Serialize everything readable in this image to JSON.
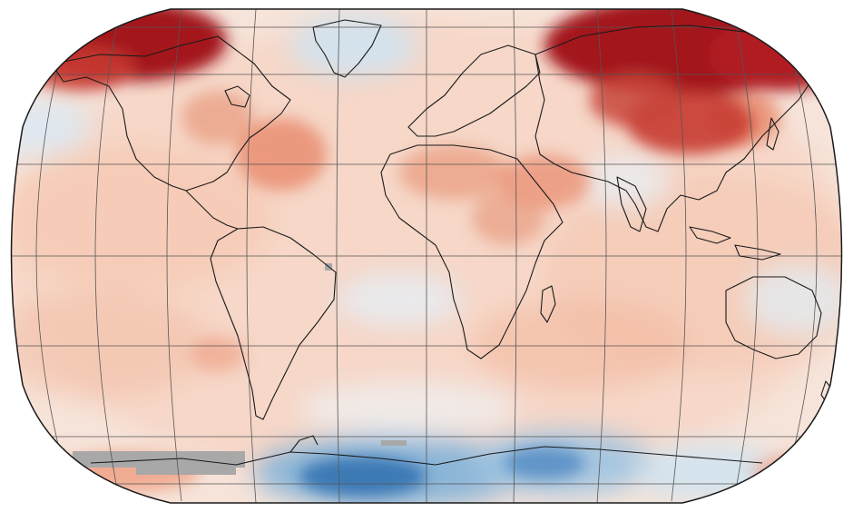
{
  "map": {
    "projection": "robinson",
    "palette": {
      "ocean_neutral": "#f6efe9",
      "warm_light": "#f5c7b0",
      "warm_mid": "#e8896c",
      "warm_strong": "#c63a32",
      "warm_extreme": "#a3141d",
      "cool_light": "#cfe3f1",
      "cool_mid": "#7fb1d9",
      "cool_strong": "#2f6eae",
      "missing_data": "#a8a8a8",
      "coastline": "#1a1a1a",
      "graticule": "#555555"
    },
    "anomaly_regions": [
      {
        "region": "northern-canada-greenland-west",
        "level": "extreme-warm"
      },
      {
        "region": "northern-siberia-russia",
        "level": "extreme-warm"
      },
      {
        "region": "mongolia-northern-china",
        "level": "strong-warm"
      },
      {
        "region": "eastern-north-america",
        "level": "mid-warm"
      },
      {
        "region": "north-africa-middle-east",
        "level": "mid-warm"
      },
      {
        "region": "central-africa",
        "level": "mid-warm"
      },
      {
        "region": "west-antarctica",
        "level": "strong-cool"
      },
      {
        "region": "east-antarctica",
        "level": "mid-cool"
      },
      {
        "region": "greenland-coast",
        "level": "light-cool"
      },
      {
        "region": "north-atlantic",
        "level": "light-cool"
      },
      {
        "region": "antarctic-peninsula-area",
        "level": "missing"
      }
    ]
  }
}
